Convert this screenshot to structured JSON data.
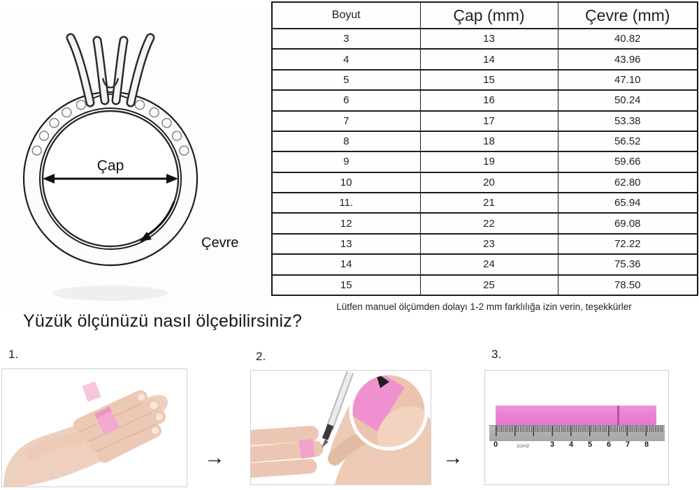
{
  "ring_diagram": {
    "diameter_label": "Çap",
    "circumference_label": "Çevre"
  },
  "size_table": {
    "headers": [
      "Boyut",
      "Çap (mm)",
      "Çevre (mm)"
    ],
    "rows": [
      [
        "3",
        "13",
        "40.82"
      ],
      [
        "4",
        "14",
        "43.96"
      ],
      [
        "5",
        "15",
        "47.10"
      ],
      [
        "6",
        "16",
        "50.24"
      ],
      [
        "7",
        "17",
        "53.38"
      ],
      [
        "8",
        "18",
        "56.52"
      ],
      [
        "9",
        "19",
        "59.66"
      ],
      [
        "10",
        "20",
        "62.80"
      ],
      [
        "11.",
        "21",
        "65.94"
      ],
      [
        "12",
        "22",
        "69.08"
      ],
      [
        "13",
        "23",
        "72.22"
      ],
      [
        "14",
        "24",
        "75.36"
      ],
      [
        "15",
        "25",
        "78.50"
      ]
    ],
    "note": "Lütfen manuel ölçümden dolayı 1-2 mm farklılığa izin verin, teşekkürler"
  },
  "howto": {
    "heading": "Yüzük ölçünüzü nasıl ölçebilirsiniz?",
    "steps": [
      {
        "label": "1."
      },
      {
        "label": "2."
      },
      {
        "label": "3."
      }
    ],
    "arrow_glyph": "→"
  },
  "ruler": {
    "labels": [
      "0",
      "1cm2",
      "3",
      "4",
      "5",
      "6",
      "7",
      "8"
    ]
  },
  "colors": {
    "strip_pink": "#ee82d6",
    "ruler_gray": "#a5a5a5",
    "mark_line": "#b5509c"
  }
}
